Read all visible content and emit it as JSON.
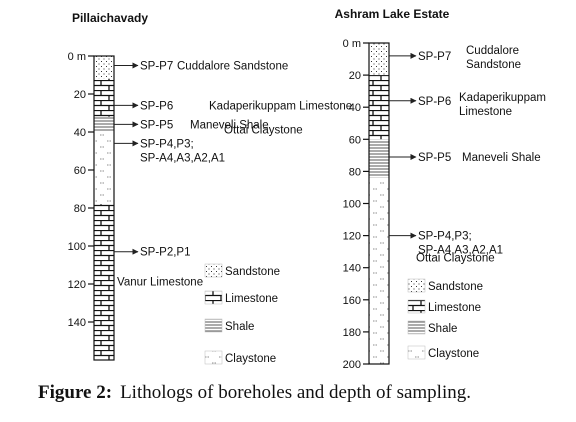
{
  "boreholes": [
    {
      "title": "Pillaichavady",
      "unit_label": "m",
      "max_depth": 160,
      "depth_ticks": [
        0,
        20,
        40,
        60,
        80,
        100,
        120,
        140
      ],
      "layers": [
        {
          "top": 0,
          "bottom": 12,
          "lithology": "sandstone"
        },
        {
          "top": 12,
          "bottom": 32,
          "lithology": "limestone"
        },
        {
          "top": 32,
          "bottom": 40,
          "lithology": "shale"
        },
        {
          "top": 40,
          "bottom": 78,
          "lithology": "claystone"
        },
        {
          "top": 78,
          "bottom": 160,
          "lithology": "limestone"
        }
      ],
      "samples": [
        {
          "depth": 5,
          "label": "SP-P7",
          "formation": "Cuddalore Sandstone"
        },
        {
          "depth": 26,
          "label": "SP-P6",
          "formation": "Kadaperikuppam Limestone"
        },
        {
          "depth": 36,
          "label": "SP-P5",
          "formation": "Maneveli Shale"
        },
        {
          "depth": 46,
          "label": "SP-P4,P3;",
          "label2": "SP-A4,A3,A2,A1",
          "formation": "Ottai Claystone"
        },
        {
          "depth": 103,
          "label": "SP-P2,P1",
          "formation": "Vanur Limestone"
        }
      ]
    },
    {
      "title": "Ashram Lake Estate",
      "unit_label": "m",
      "max_depth": 200,
      "depth_ticks": [
        0,
        20,
        40,
        60,
        80,
        100,
        120,
        140,
        160,
        180,
        200
      ],
      "layers": [
        {
          "top": 0,
          "bottom": 20,
          "lithology": "sandstone"
        },
        {
          "top": 20,
          "bottom": 60,
          "lithology": "limestone"
        },
        {
          "top": 60,
          "bottom": 84,
          "lithology": "shale"
        },
        {
          "top": 84,
          "bottom": 200,
          "lithology": "claystone"
        }
      ],
      "samples": [
        {
          "depth": 8,
          "label": "SP-P7",
          "formation": "Cuddalore",
          "formation2": "Sandstone"
        },
        {
          "depth": 36,
          "label": "SP-P6",
          "formation": "Kadaperikuppam",
          "formation2": "Limestone"
        },
        {
          "depth": 71,
          "label": "SP-P5",
          "formation": "Maneveli Shale"
        },
        {
          "depth": 120,
          "label": "SP-P4,P3;",
          "label2": "SP-A4,A3,A2,A1",
          "formation": "Ottai Claystone"
        }
      ]
    }
  ],
  "legend": {
    "sandstone": "Sandstone",
    "limestone": "Limestone",
    "shale": "Shale",
    "claystone": "Claystone"
  },
  "caption": {
    "number": "Figure 2:",
    "text": "Lithologs of boreholes and depth of sampling."
  }
}
